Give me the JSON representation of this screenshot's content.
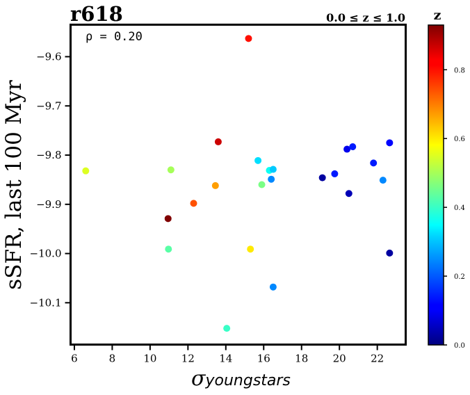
{
  "chart_data": {
    "type": "scatter",
    "title": "r618",
    "subtitle": "0.0 ≤ z ≤ 1.0",
    "annotation": "ρ = 0.20",
    "xlabel_base": "σ",
    "xlabel_sub": "youngstars",
    "ylabel": "sSFR, last 100 Myr",
    "xlim": [
      5.8,
      23.5
    ],
    "ylim": [
      -10.185,
      -9.535
    ],
    "xticks": [
      6,
      8,
      10,
      12,
      14,
      16,
      18,
      20,
      22
    ],
    "yticks": [
      -10.1,
      -10.0,
      -9.9,
      -9.8,
      -9.7,
      -9.6
    ],
    "grid": false,
    "colorbar": {
      "label": "z",
      "colormap": "jet",
      "range": [
        0.0,
        0.93
      ],
      "ticks": [
        0.0,
        0.2,
        0.4,
        0.6,
        0.8
      ],
      "tick_labels": [
        "0.0",
        "0.2",
        "0.4",
        "0.6",
        "0.8"
      ]
    },
    "points": [
      {
        "x": 6.6,
        "y": -9.832,
        "z": 0.55
      },
      {
        "x": 10.95,
        "y": -9.929,
        "z": 0.93
      },
      {
        "x": 10.97,
        "y": -9.991,
        "z": 0.43
      },
      {
        "x": 11.1,
        "y": -9.83,
        "z": 0.5
      },
      {
        "x": 12.3,
        "y": -9.898,
        "z": 0.74
      },
      {
        "x": 13.45,
        "y": -9.862,
        "z": 0.67
      },
      {
        "x": 13.6,
        "y": -9.773,
        "z": 0.86
      },
      {
        "x": 14.05,
        "y": -10.152,
        "z": 0.4
      },
      {
        "x": 15.2,
        "y": -9.563,
        "z": 0.8
      },
      {
        "x": 15.3,
        "y": -9.991,
        "z": 0.6
      },
      {
        "x": 15.7,
        "y": -9.811,
        "z": 0.32
      },
      {
        "x": 15.9,
        "y": -9.86,
        "z": 0.46
      },
      {
        "x": 16.3,
        "y": -9.831,
        "z": 0.36
      },
      {
        "x": 16.4,
        "y": -9.849,
        "z": 0.24
      },
      {
        "x": 16.5,
        "y": -9.829,
        "z": 0.3
      },
      {
        "x": 16.5,
        "y": -10.068,
        "z": 0.24
      },
      {
        "x": 19.1,
        "y": -9.846,
        "z": 0.03
      },
      {
        "x": 19.75,
        "y": -9.838,
        "z": 0.14
      },
      {
        "x": 20.4,
        "y": -9.788,
        "z": 0.1
      },
      {
        "x": 20.5,
        "y": -9.878,
        "z": 0.05
      },
      {
        "x": 20.7,
        "y": -9.783,
        "z": 0.14
      },
      {
        "x": 21.8,
        "y": -9.816,
        "z": 0.14
      },
      {
        "x": 22.3,
        "y": -9.851,
        "z": 0.24
      },
      {
        "x": 22.65,
        "y": -9.775,
        "z": 0.12
      },
      {
        "x": 22.65,
        "y": -9.999,
        "z": 0.03
      }
    ]
  }
}
